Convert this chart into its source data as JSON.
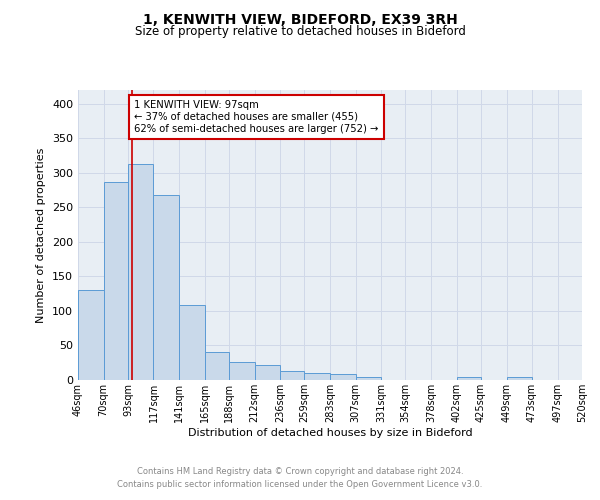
{
  "title": "1, KENWITH VIEW, BIDEFORD, EX39 3RH",
  "subtitle": "Size of property relative to detached houses in Bideford",
  "xlabel": "Distribution of detached houses by size in Bideford",
  "ylabel": "Number of detached properties",
  "bin_labels": [
    "46sqm",
    "70sqm",
    "93sqm",
    "117sqm",
    "141sqm",
    "165sqm",
    "188sqm",
    "212sqm",
    "236sqm",
    "259sqm",
    "283sqm",
    "307sqm",
    "331sqm",
    "354sqm",
    "378sqm",
    "402sqm",
    "425sqm",
    "449sqm",
    "473sqm",
    "497sqm",
    "520sqm"
  ],
  "bar_values": [
    130,
    287,
    313,
    268,
    108,
    41,
    26,
    22,
    13,
    10,
    8,
    5,
    0,
    0,
    0,
    5,
    0,
    4,
    0,
    0,
    0
  ],
  "bar_color": "#c9d9ea",
  "bar_edge_color": "#5b9bd5",
  "property_line_x": 97,
  "bin_edges": [
    46,
    70,
    93,
    117,
    141,
    165,
    188,
    212,
    236,
    259,
    283,
    307,
    331,
    354,
    378,
    402,
    425,
    449,
    473,
    497,
    520
  ],
  "ylim": [
    0,
    420
  ],
  "yticks": [
    0,
    50,
    100,
    150,
    200,
    250,
    300,
    350,
    400
  ],
  "annotation_text": "1 KENWITH VIEW: 97sqm\n← 37% of detached houses are smaller (455)\n62% of semi-detached houses are larger (752) →",
  "annotation_box_color": "#ffffff",
  "annotation_border_color": "#cc0000",
  "red_line_color": "#cc0000",
  "grid_color": "#d0d8e8",
  "background_color": "#e8eef4",
  "footer_line1": "Contains HM Land Registry data © Crown copyright and database right 2024.",
  "footer_line2": "Contains public sector information licensed under the Open Government Licence v3.0."
}
